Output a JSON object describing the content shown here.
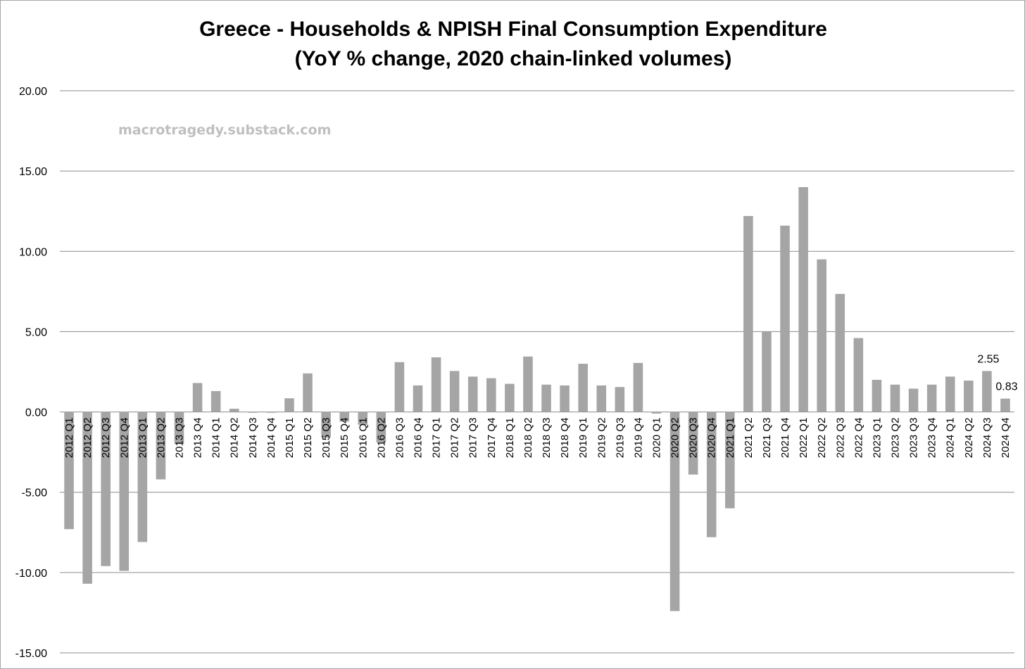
{
  "chart_data": {
    "type": "bar",
    "title": "Greece - Households & NPISH Final Consumption Expenditure",
    "subtitle": "(YoY % change, 2020 chain-linked volumes)",
    "watermark": "macrotragedy.substack.com",
    "ylim": [
      -15,
      20
    ],
    "yticks": [
      20,
      15,
      10,
      5,
      0,
      -5,
      -10,
      -15
    ],
    "ytick_labels": [
      "20.00",
      "15.00",
      "10.00",
      "5.00",
      "0.00",
      "-5.00",
      "-10.00",
      "-15.00"
    ],
    "grid": true,
    "legend": "none",
    "bar_color": "#a5a5a5",
    "categories": [
      "2012 Q1",
      "2012 Q2",
      "2012 Q3",
      "2012 Q4",
      "2013 Q1",
      "2013 Q2",
      "2013 Q3",
      "2013 Q4",
      "2014 Q1",
      "2014 Q2",
      "2014 Q3",
      "2014 Q4",
      "2015 Q1",
      "2015 Q2",
      "2015 Q3",
      "2015 Q4",
      "2016 Q1",
      "2016 Q2",
      "2016 Q3",
      "2016 Q4",
      "2017 Q1",
      "2017 Q2",
      "2017 Q3",
      "2017 Q4",
      "2018 Q1",
      "2018 Q2",
      "2018 Q3",
      "2018 Q4",
      "2019 Q1",
      "2019 Q2",
      "2019 Q3",
      "2019 Q4",
      "2020 Q1",
      "2020 Q2",
      "2020 Q3",
      "2020 Q4",
      "2021 Q1",
      "2021 Q2",
      "2021 Q3",
      "2021 Q4",
      "2022 Q1",
      "2022 Q2",
      "2022 Q3",
      "2022 Q4",
      "2023 Q1",
      "2023 Q2",
      "2023 Q3",
      "2023 Q4",
      "2024 Q1",
      "2024 Q2",
      "2024 Q3",
      "2024 Q4"
    ],
    "values": [
      -7.3,
      -10.7,
      -9.6,
      -9.9,
      -8.1,
      -4.2,
      -2.0,
      1.8,
      1.3,
      0.2,
      -0.05,
      -0.05,
      0.85,
      2.4,
      -1.6,
      -0.6,
      -0.8,
      -1.9,
      3.1,
      1.65,
      3.4,
      2.55,
      2.2,
      2.1,
      1.75,
      3.45,
      1.7,
      1.65,
      3.0,
      1.65,
      1.55,
      3.05,
      -0.1,
      -12.4,
      -3.9,
      -7.8,
      -6.0,
      12.2,
      5.0,
      11.6,
      14.0,
      9.5,
      7.35,
      4.6,
      2.0,
      1.7,
      1.45,
      1.7,
      2.2,
      1.95,
      2.55,
      0.83
    ],
    "data_labels": [
      {
        "category": "2024 Q3",
        "text": "2.55"
      },
      {
        "category": "2024 Q4",
        "text": "0.83"
      }
    ]
  }
}
